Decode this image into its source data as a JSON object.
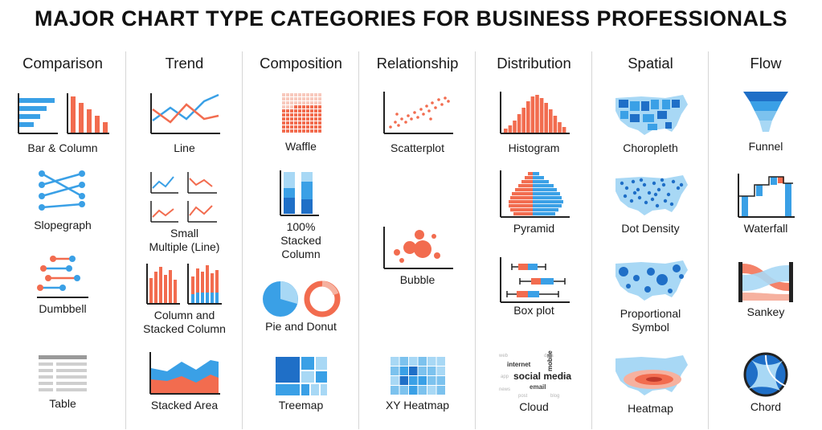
{
  "title": "MAJOR CHART TYPE CATEGORIES FOR BUSINESS PROFESSIONALS",
  "colors": {
    "blue": "#3aa0e6",
    "lightblue": "#a8d8f5",
    "darkblue": "#1f6fc7",
    "orange": "#f26c4f",
    "axis": "#222222",
    "divider": "#d6d6d6"
  },
  "categories": [
    {
      "name": "Comparison",
      "charts": [
        "Bar & Column",
        "Slopegraph",
        "Dumbbell",
        "Table"
      ]
    },
    {
      "name": "Trend",
      "charts": [
        "Line",
        "Small\nMultiple (Line)",
        "Column and\nStacked Column",
        "Stacked Area"
      ]
    },
    {
      "name": "Composition",
      "charts": [
        "Waffle",
        "100%\nStacked\nColumn",
        "Pie and Donut",
        "Treemap"
      ]
    },
    {
      "name": "Relationship",
      "charts": [
        "Scatterplot",
        "Bubble",
        "XY Heatmap"
      ]
    },
    {
      "name": "Distribution",
      "charts": [
        "Histogram",
        "Pyramid",
        "Box plot",
        "Cloud"
      ]
    },
    {
      "name": "Spatial",
      "charts": [
        "Choropleth",
        "Dot Density",
        "Proportional\nSymbol",
        "Heatmap"
      ]
    },
    {
      "name": "Flow",
      "charts": [
        "Funnel",
        "Waterfall",
        "Sankey",
        "Chord"
      ]
    }
  ],
  "cloud_words": [
    "internet",
    "social media",
    "email",
    "mobile"
  ]
}
